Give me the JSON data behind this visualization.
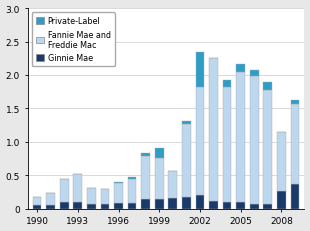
{
  "years": [
    1990,
    1991,
    1992,
    1993,
    1994,
    1995,
    1996,
    1997,
    1998,
    1999,
    2000,
    2001,
    2002,
    2003,
    2004,
    2005,
    2006,
    2007,
    2008,
    2009
  ],
  "ginnie_mae": [
    0.05,
    0.05,
    0.1,
    0.1,
    0.07,
    0.07,
    0.08,
    0.09,
    0.14,
    0.14,
    0.16,
    0.18,
    0.2,
    0.11,
    0.1,
    0.1,
    0.07,
    0.07,
    0.27,
    0.37
  ],
  "fannie_freddie": [
    0.13,
    0.18,
    0.35,
    0.42,
    0.24,
    0.22,
    0.3,
    0.35,
    0.65,
    0.62,
    0.4,
    1.08,
    1.62,
    2.15,
    1.72,
    1.95,
    1.92,
    1.7,
    0.88,
    1.2
  ],
  "private_label": [
    0.0,
    0.0,
    0.0,
    0.0,
    0.0,
    0.0,
    0.02,
    0.04,
    0.05,
    0.15,
    0.0,
    0.05,
    0.52,
    0.0,
    0.1,
    0.12,
    0.09,
    0.13,
    0.0,
    0.05
  ],
  "color_ginnie": "#1a3a6b",
  "color_fannie": "#bdd7ee",
  "color_private": "#2e9dc8",
  "bar_width": 0.65,
  "ylim": [
    0,
    3.0
  ],
  "yticks": [
    0,
    0.5,
    1.0,
    1.5,
    2.0,
    2.5,
    3.0
  ],
  "xtick_years": [
    1990,
    1993,
    1996,
    1999,
    2002,
    2005,
    2008
  ],
  "legend_labels": [
    "Private-Label",
    "Fannie Mae and\nFreddie Mac",
    "Ginnie Mae"
  ],
  "background_color": "#e8e8e8",
  "plot_bg": "#ffffff",
  "edge_color": "#aaaaaa"
}
